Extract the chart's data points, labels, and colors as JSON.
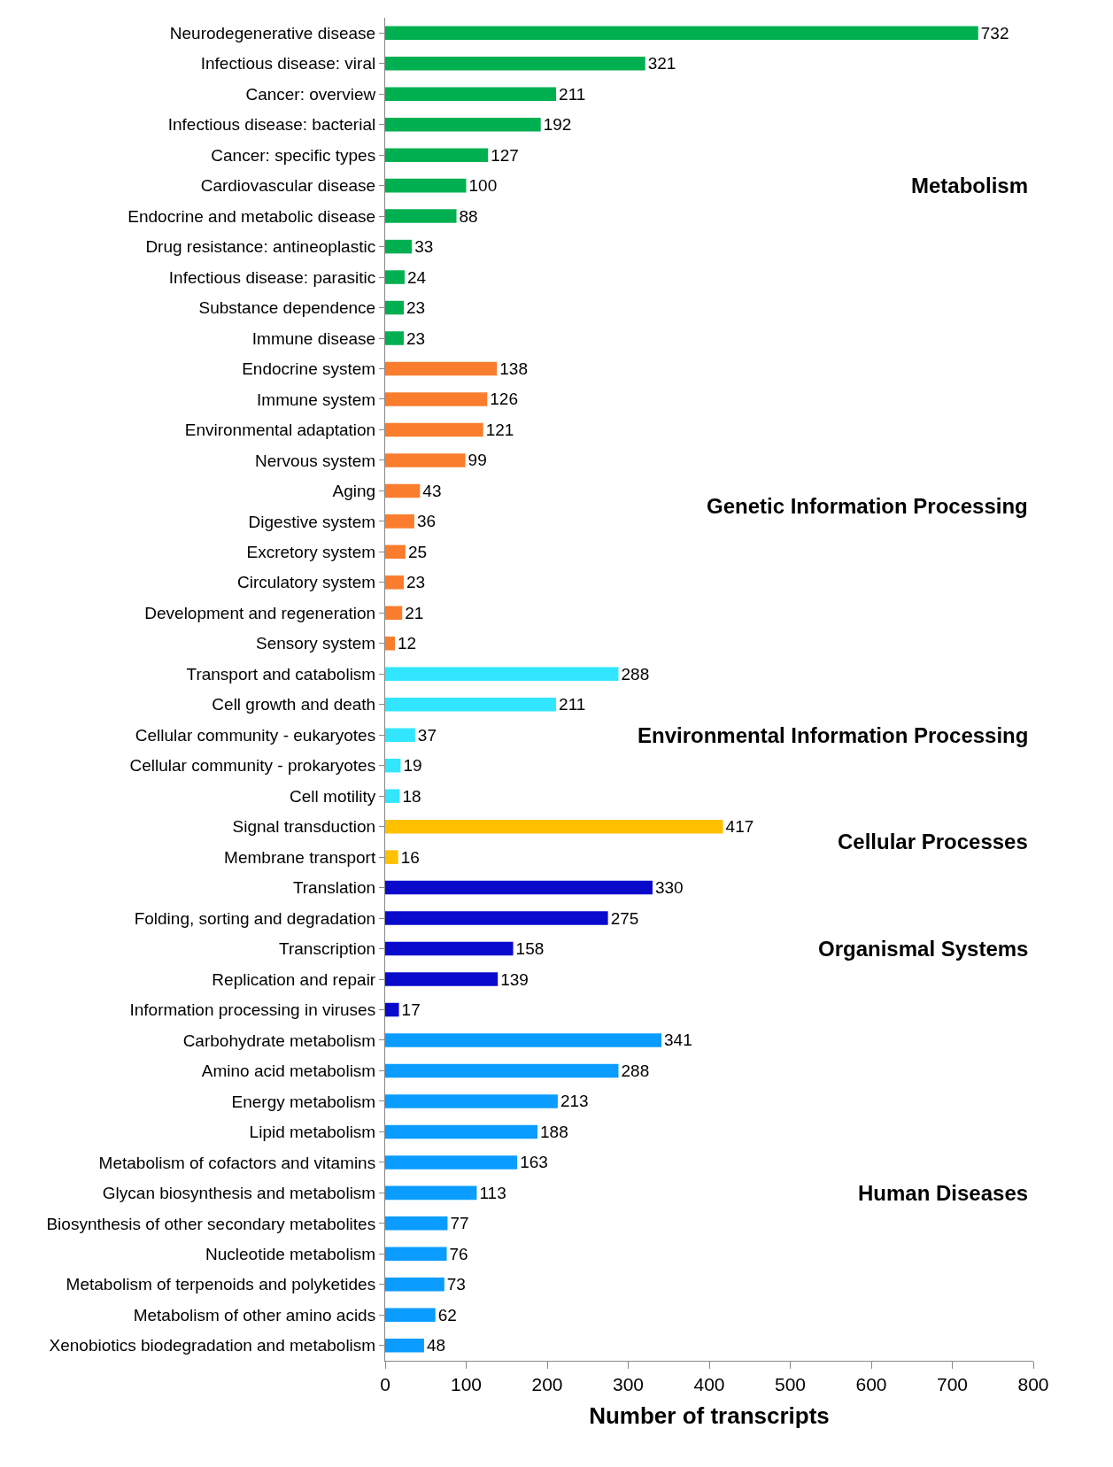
{
  "chart_data": {
    "type": "bar",
    "orientation": "horizontal",
    "xlabel": "Number of transcripts",
    "xlim": [
      0,
      800
    ],
    "xticks": [
      0,
      100,
      200,
      300,
      400,
      500,
      600,
      700,
      800
    ],
    "data_labels": true,
    "categories": [
      "Neurodegenerative disease",
      "Infectious disease: viral",
      "Cancer: overview",
      "Infectious disease: bacterial",
      "Cancer: specific types",
      "Cardiovascular disease",
      "Endocrine and metabolic disease",
      "Drug resistance: antineoplastic",
      "Infectious disease: parasitic",
      "Substance dependence",
      "Immune disease",
      "Endocrine system",
      "Immune system",
      "Environmental adaptation",
      "Nervous system",
      "Aging",
      "Digestive system",
      "Excretory system",
      "Circulatory system",
      "Development and regeneration",
      "Sensory system",
      "Transport and catabolism",
      "Cell growth and death",
      "Cellular community - eukaryotes",
      "Cellular community - prokaryotes",
      "Cell motility",
      "Signal transduction",
      "Membrane transport",
      "Translation",
      "Folding, sorting and degradation",
      "Transcription",
      "Replication and repair",
      "Information processing in viruses",
      "Carbohydrate metabolism",
      "Amino acid metabolism",
      "Energy metabolism",
      "Lipid metabolism",
      "Metabolism of cofactors and vitamins",
      "Glycan biosynthesis and metabolism",
      "Biosynthesis of other secondary metabolites",
      "Nucleotide metabolism",
      "Metabolism of terpenoids and polyketides",
      "Metabolism of other amino acids",
      "Xenobiotics biodegradation and metabolism"
    ],
    "values": [
      732,
      321,
      211,
      192,
      127,
      100,
      88,
      33,
      24,
      23,
      23,
      138,
      126,
      121,
      99,
      43,
      36,
      25,
      23,
      21,
      12,
      288,
      211,
      37,
      19,
      18,
      417,
      16,
      330,
      275,
      158,
      139,
      17,
      341,
      288,
      213,
      188,
      163,
      113,
      77,
      76,
      73,
      62,
      48
    ],
    "colors": [
      "#00b050",
      "#00b050",
      "#00b050",
      "#00b050",
      "#00b050",
      "#00b050",
      "#00b050",
      "#00b050",
      "#00b050",
      "#00b050",
      "#00b050",
      "#f97d2d",
      "#f97d2d",
      "#f97d2d",
      "#f97d2d",
      "#f97d2d",
      "#f97d2d",
      "#f97d2d",
      "#f97d2d",
      "#f97d2d",
      "#f97d2d",
      "#33e6ff",
      "#33e6ff",
      "#33e6ff",
      "#33e6ff",
      "#33e6ff",
      "#ffc000",
      "#ffc000",
      "#0a0acc",
      "#0a0acc",
      "#0a0acc",
      "#0a0acc",
      "#0a0acc",
      "#0a9cff",
      "#0a9cff",
      "#0a9cff",
      "#0a9cff",
      "#0a9cff",
      "#0a9cff",
      "#0a9cff",
      "#0a9cff",
      "#0a9cff",
      "#0a9cff",
      "#0a9cff"
    ],
    "annotations": [
      "Metabolism",
      "Genetic Information Processing",
      "Environmental Information Processing",
      "Cellular Processes",
      "Organismal Systems",
      "Human Diseases"
    ]
  }
}
